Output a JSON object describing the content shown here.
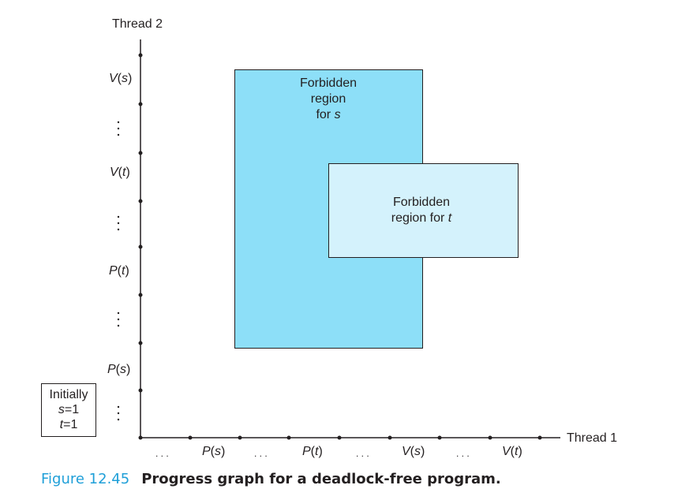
{
  "axes": {
    "y_title": "Thread 2",
    "x_title": "Thread 1",
    "y_labels": [
      {
        "name": "P",
        "arg": "s"
      },
      {
        "name": "P",
        "arg": "t"
      },
      {
        "name": "V",
        "arg": "t"
      },
      {
        "name": "V",
        "arg": "s"
      }
    ],
    "x_labels": [
      {
        "name": "P",
        "arg": "s"
      },
      {
        "name": "P",
        "arg": "t"
      },
      {
        "name": "V",
        "arg": "s"
      },
      {
        "name": "V",
        "arg": "t"
      }
    ],
    "ellipsis_horizontal": ". . .",
    "ellipsis_vertical": ". . ."
  },
  "regions": {
    "s": {
      "line1": "Forbidden",
      "line2": "region",
      "line3_prefix": "for ",
      "line3_var": "s",
      "color": "#8ddff8"
    },
    "t": {
      "line1": "Forbidden",
      "line2_prefix": "region for ",
      "line2_var": "t",
      "color": "#d4f2fc"
    }
  },
  "initial_state": {
    "line1": "Initially",
    "line2_var": "s",
    "line2_rest": "=1",
    "line3_var": "t",
    "line3_rest": "=1"
  },
  "caption": {
    "number": "Figure 12.45",
    "text": "Progress graph for a deadlock-free program."
  },
  "colors": {
    "axis": "#231f20",
    "caption_accent": "#1f9fd8"
  }
}
